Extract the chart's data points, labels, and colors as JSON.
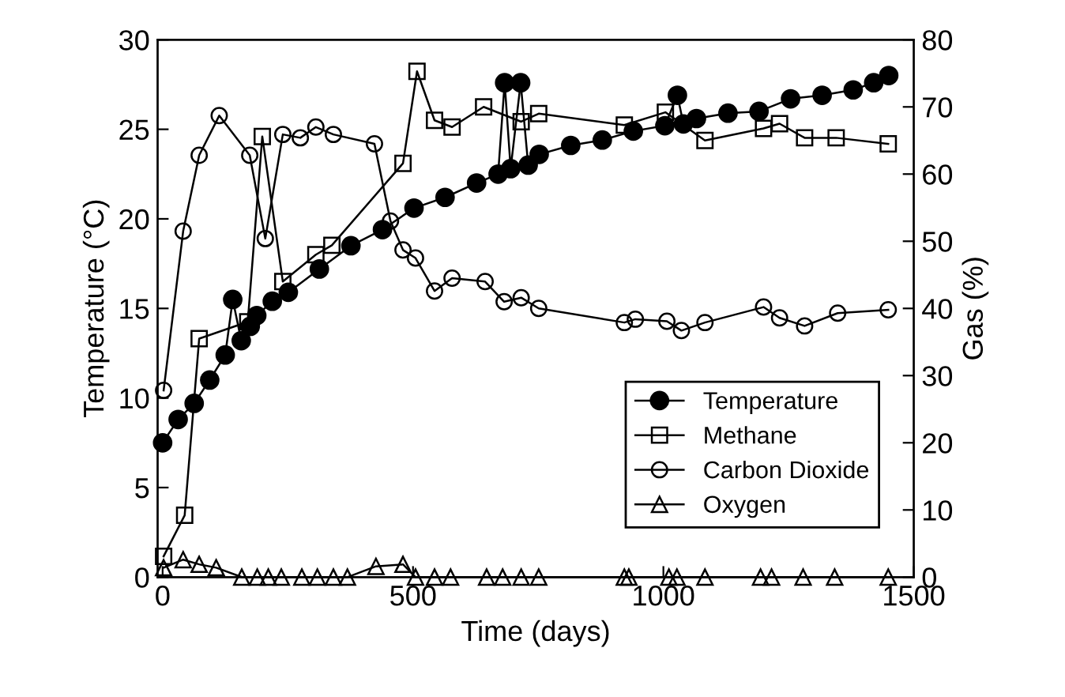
{
  "chart_data": {
    "type": "line",
    "xlabel": "Time (days)",
    "ylabel": "Temperature (°C)",
    "y2label": "Gas (%)",
    "xlim": [
      -10,
      1500
    ],
    "xticks": [
      0,
      500,
      1000,
      1500
    ],
    "ylim": [
      0,
      30
    ],
    "yticks": [
      0,
      5,
      10,
      15,
      20,
      25,
      30
    ],
    "y2lim": [
      0,
      80
    ],
    "y2ticks": [
      0,
      10,
      20,
      30,
      40,
      50,
      60,
      70,
      80
    ],
    "legend": "bottom right",
    "grid": false,
    "line_style": "solid",
    "series": [
      {
        "name": "Temperature",
        "color": "#000000",
        "marker": "circle",
        "axis": "y",
        "x": [
          0,
          31,
          63,
          94,
          125,
          140,
          157,
          175,
          188,
          219,
          251,
          313,
          376,
          439,
          502,
          564,
          627,
          670,
          683,
          695,
          715,
          730,
          752,
          815,
          878,
          940,
          1003,
          1028,
          1040,
          1066,
          1129,
          1191,
          1254,
          1317,
          1379,
          1420,
          1450
        ],
        "values": [
          7.5,
          8.8,
          9.7,
          11,
          12.4,
          15.5,
          13.2,
          14,
          14.6,
          15.4,
          15.9,
          17.2,
          18.5,
          19.4,
          20.6,
          21.2,
          22,
          22.5,
          27.6,
          22.8,
          27.6,
          23,
          23.6,
          24.1,
          24.4,
          24.9,
          25.2,
          26.9,
          25.3,
          25.6,
          25.9,
          26,
          26.7,
          26.9,
          27.2,
          27.6,
          28
        ]
      },
      {
        "name": "Methane",
        "color": "#000000",
        "marker": "square",
        "axis": "y2",
        "x": [
          2,
          44,
          73,
          170,
          199,
          240,
          306,
          338,
          480,
          508,
          543,
          578,
          641,
          716,
          751,
          922,
          1004,
          1083,
          1200,
          1232,
          1282,
          1345,
          1449
        ],
        "values": [
          3.1,
          9.2,
          35.5,
          38,
          65.6,
          44,
          48,
          49.4,
          61.6,
          75.3,
          68,
          67,
          70,
          67.8,
          69,
          67.3,
          69.2,
          65,
          66.8,
          67.5,
          65.4,
          65.4,
          64.5
        ]
      },
      {
        "name": "Carbon Dioxide",
        "color": "#000000",
        "marker": "circle",
        "axis": "y2",
        "x": [
          2,
          41,
          73,
          113,
          174,
          205,
          240,
          275,
          306,
          341,
          423,
          455,
          480,
          505,
          543,
          578,
          644,
          682,
          716,
          751,
          922,
          944,
          1007,
          1036,
          1083,
          1200,
          1232,
          1282,
          1348,
          1449
        ],
        "values": [
          27.8,
          51.5,
          62.8,
          68.7,
          62.8,
          50.4,
          65.9,
          65.4,
          67,
          65.9,
          64.5,
          53,
          48.7,
          47.5,
          42.6,
          44.5,
          44,
          41,
          41.6,
          40,
          37.9,
          38.4,
          38.1,
          36.7,
          37.9,
          40.2,
          38.6,
          37.4,
          39.3,
          39.8
        ]
      },
      {
        "name": "Oxygen",
        "color": "#000000",
        "marker": "triangle",
        "axis": "y2",
        "x": [
          2,
          41,
          73,
          107,
          158,
          189,
          211,
          237,
          278,
          309,
          341,
          369,
          426,
          480,
          505,
          543,
          575,
          647,
          679,
          716,
          751,
          922,
          931,
          1011,
          1027,
          1083,
          1194,
          1216,
          1279,
          1342,
          1449
        ],
        "values": [
          1.4,
          2.6,
          1.9,
          1.4,
          0,
          0,
          0,
          0,
          0,
          0,
          0,
          0,
          1.6,
          1.9,
          0,
          0,
          0,
          0,
          0,
          0,
          0,
          0,
          0,
          0,
          0,
          0,
          0,
          0,
          0,
          0,
          0
        ]
      }
    ]
  }
}
